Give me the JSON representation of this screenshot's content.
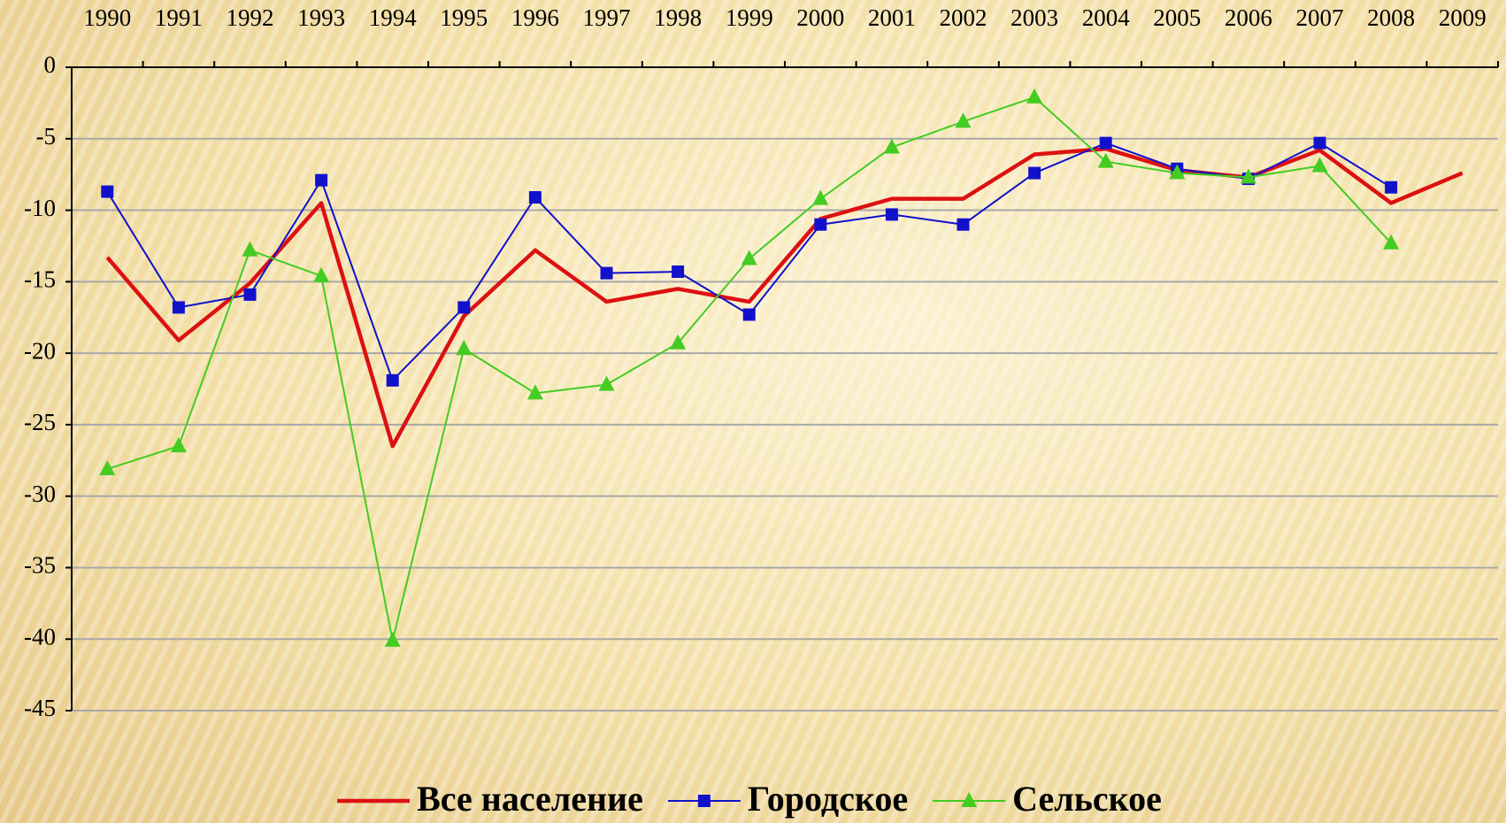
{
  "chart_data": {
    "type": "line",
    "categories": [
      "1990",
      "1991",
      "1992",
      "1993",
      "1994",
      "1995",
      "1996",
      "1997",
      "1998",
      "1999",
      "2000",
      "2001",
      "2002",
      "2003",
      "2004",
      "2005",
      "2006",
      "2007",
      "2008",
      "2009"
    ],
    "series": [
      {
        "name": "Все население",
        "color": "#dd1111",
        "marker": "none",
        "values": [
          -13.3,
          -19.1,
          -15.1,
          -9.5,
          -26.5,
          -17.4,
          -12.8,
          -16.4,
          -15.5,
          -16.4,
          -10.6,
          -9.2,
          -9.2,
          -6.1,
          -5.7,
          -7.2,
          -7.7,
          -5.8,
          -9.5,
          -7.4
        ]
      },
      {
        "name": "Городское",
        "color": "#1111cc",
        "marker": "square",
        "values": [
          -8.7,
          -16.8,
          -15.9,
          -7.9,
          -21.9,
          -16.8,
          -9.1,
          -14.4,
          -14.3,
          -17.3,
          -11.0,
          -10.3,
          -11.0,
          -7.4,
          -5.3,
          -7.1,
          -7.8,
          -5.3,
          -8.4,
          null
        ]
      },
      {
        "name": "Сельское",
        "color": "#44cc22",
        "marker": "triangle",
        "values": [
          -28.1,
          -26.5,
          -12.8,
          -14.6,
          -40.1,
          -19.7,
          -22.8,
          -22.2,
          -19.3,
          -13.4,
          -9.2,
          -5.6,
          -3.8,
          -2.1,
          -6.6,
          -7.4,
          -7.7,
          -6.9,
          -12.3,
          null
        ]
      }
    ],
    "ylim": [
      -45,
      0
    ],
    "yticks": [
      0,
      -5,
      -10,
      -15,
      -20,
      -25,
      -30,
      -35,
      -40,
      -45
    ],
    "grid": true,
    "legend": "bottom"
  }
}
